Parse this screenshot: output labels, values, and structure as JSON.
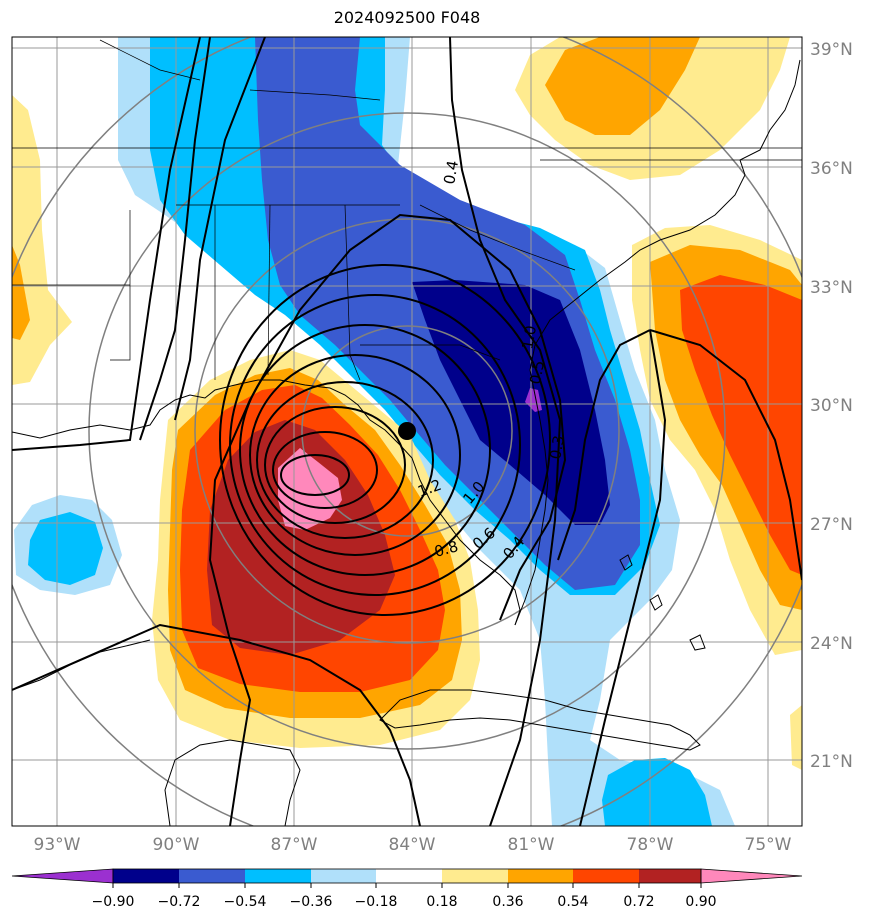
{
  "title": "2024092500 F048",
  "map": {
    "lat_labels": [
      "39°N",
      "36°N",
      "33°N",
      "30°N",
      "27°N",
      "24°N",
      "21°N"
    ],
    "lon_labels": [
      "93°W",
      "90°W",
      "87°W",
      "84°W",
      "81°W",
      "78°W",
      "75°W"
    ],
    "storm_center": {
      "lat": 29.2,
      "lon": -84.0
    },
    "contour_labels": [
      "0.4",
      "1.2",
      "1.0",
      "0.8",
      "0.6",
      "0.4",
      "0.3",
      "0.5",
      "1.0"
    ],
    "label_color": "#808080"
  },
  "colorbar": {
    "ticks": [
      "−0.90",
      "−0.72",
      "−0.54",
      "−0.36",
      "−0.18",
      "0.18",
      "0.36",
      "0.54",
      "0.72",
      "0.90"
    ],
    "colors": [
      "#9b30d0",
      "#00008b",
      "#3a5bd0",
      "#00bfff",
      "#b0e0fa",
      "#ffffff",
      "#ffeb8f",
      "#ffa500",
      "#ff4500",
      "#b22222",
      "#ff88bb"
    ]
  }
}
